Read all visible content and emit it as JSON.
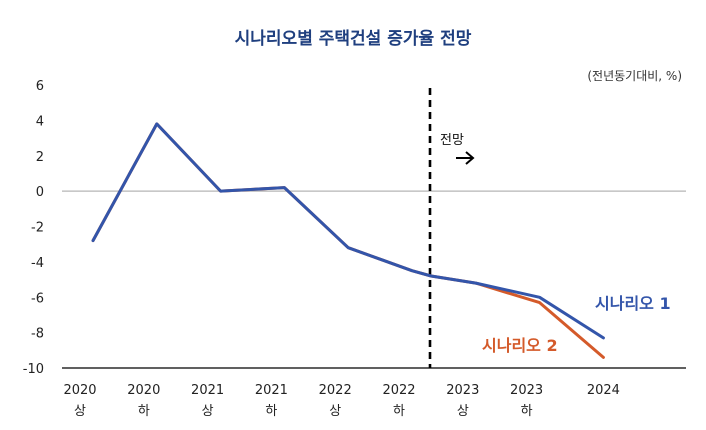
{
  "chart_data": {
    "type": "line",
    "title": "시나리오별 주택건설 증가율 전망",
    "unit": "(전년동기대비, %)",
    "ylim": [
      -10,
      6
    ],
    "yticks": [
      6,
      4,
      2,
      0,
      -2,
      -4,
      -6,
      -8,
      -10
    ],
    "categories": [
      [
        "2020",
        "상"
      ],
      [
        "2020",
        "하"
      ],
      [
        "2021",
        "상"
      ],
      [
        "2021",
        "하"
      ],
      [
        "2022",
        "상"
      ],
      [
        "2022",
        "하"
      ],
      [
        "2023",
        "상"
      ],
      [
        "2023",
        "하"
      ],
      [
        "2024",
        ""
      ]
    ],
    "forecast_label": "전망",
    "forecast_after_index": 5,
    "series": [
      {
        "name": "시나리오 1",
        "color": "#3355aa",
        "points": [
          [
            0,
            -2.8
          ],
          [
            1,
            3.8
          ],
          [
            2,
            0.0
          ],
          [
            3,
            0.2
          ],
          [
            4,
            -3.2
          ],
          [
            5,
            -4.5
          ],
          [
            5.3,
            -4.8
          ],
          [
            6,
            -5.2
          ],
          [
            7,
            -6.0
          ],
          [
            8,
            -8.3
          ]
        ]
      },
      {
        "name": "시나리오 2",
        "color": "#d45a2a",
        "points": [
          [
            0,
            -2.8
          ],
          [
            1,
            3.8
          ],
          [
            2,
            0.0
          ],
          [
            3,
            0.2
          ],
          [
            4,
            -3.2
          ],
          [
            5,
            -4.5
          ],
          [
            5.3,
            -4.8
          ],
          [
            6,
            -5.2
          ],
          [
            7,
            -6.3
          ],
          [
            8,
            -9.4
          ]
        ]
      }
    ]
  }
}
